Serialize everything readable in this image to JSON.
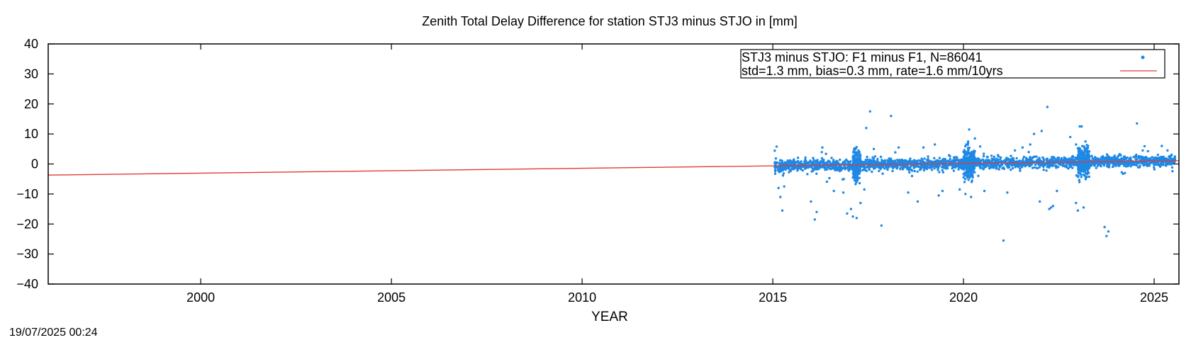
{
  "timestamp": "19/07/2025 00:24",
  "chart_data": {
    "type": "scatter",
    "title": "Zenith Total Delay Difference for station STJ3 minus STJO in [mm]",
    "xlabel": "YEAR",
    "ylabel": "",
    "xlim": [
      1996.0,
      2025.65
    ],
    "ylim": [
      -40,
      40
    ],
    "xticks": [
      2000,
      2005,
      2010,
      2015,
      2020,
      2025
    ],
    "yticks": [
      40,
      30,
      20,
      10,
      0,
      -10,
      -20,
      -30,
      -40
    ],
    "xtick_labels": [
      "2000",
      "2005",
      "2010",
      "2015",
      "2020",
      "2025"
    ],
    "ytick_labels": [
      "40",
      "30",
      "20",
      "10",
      "0",
      "−10",
      "−20",
      "−30",
      "−40"
    ],
    "grid": false,
    "legend_position": "top-right",
    "series": [
      {
        "name": "STJ3 minus STJO: F1 minus F1, N=86041",
        "kind": "points",
        "color": "#1e88e5",
        "x_range": [
          2015.05,
          2025.55
        ],
        "core_band": [
          -2.5,
          2.5
        ],
        "outliers": [
          [
            2015.1,
            5.8
          ],
          [
            2015.15,
            -8.0
          ],
          [
            2015.2,
            -11.0
          ],
          [
            2015.25,
            -15.5
          ],
          [
            2015.3,
            -7.5
          ],
          [
            2016.0,
            -12.5
          ],
          [
            2016.1,
            -18.5
          ],
          [
            2016.15,
            -16.0
          ],
          [
            2016.3,
            5.5
          ],
          [
            2016.6,
            -9.0
          ],
          [
            2016.85,
            -9.5
          ],
          [
            2016.95,
            -16.5
          ],
          [
            2017.05,
            -15.0
          ],
          [
            2017.1,
            -17.5
          ],
          [
            2017.2,
            -18.0
          ],
          [
            2017.3,
            -13.0
          ],
          [
            2017.4,
            -8.5
          ],
          [
            2017.45,
            12.0
          ],
          [
            2017.55,
            17.5
          ],
          [
            2017.65,
            5.0
          ],
          [
            2017.85,
            -20.5
          ],
          [
            2018.1,
            16.0
          ],
          [
            2018.3,
            5.5
          ],
          [
            2018.55,
            -9.5
          ],
          [
            2018.8,
            -12.5
          ],
          [
            2018.95,
            5.5
          ],
          [
            2019.25,
            6.5
          ],
          [
            2019.35,
            -10.5
          ],
          [
            2019.45,
            -9.0
          ],
          [
            2019.9,
            -8.5
          ],
          [
            2020.05,
            -10.0
          ],
          [
            2020.15,
            11.5
          ],
          [
            2020.2,
            -11.0
          ],
          [
            2020.3,
            8.5
          ],
          [
            2020.55,
            -9.0
          ],
          [
            2021.05,
            -25.5
          ],
          [
            2021.15,
            -9.5
          ],
          [
            2021.35,
            4.5
          ],
          [
            2021.55,
            5.5
          ],
          [
            2021.75,
            6.5
          ],
          [
            2021.85,
            10.0
          ],
          [
            2022.0,
            -12.5
          ],
          [
            2022.05,
            11.0
          ],
          [
            2022.2,
            19.0
          ],
          [
            2022.25,
            -15.0
          ],
          [
            2022.35,
            -14.0
          ],
          [
            2022.3,
            -14.5
          ],
          [
            2022.45,
            -9.0
          ],
          [
            2022.8,
            9.0
          ],
          [
            2022.95,
            -13.0
          ],
          [
            2023.0,
            -15.5
          ],
          [
            2023.05,
            12.5
          ],
          [
            2023.1,
            12.5
          ],
          [
            2023.15,
            -14.5
          ],
          [
            2023.2,
            7.5
          ],
          [
            2023.7,
            -21.0
          ],
          [
            2023.75,
            -24.0
          ],
          [
            2023.8,
            -22.5
          ],
          [
            2024.55,
            13.5
          ],
          [
            2024.7,
            4.5
          ],
          [
            2025.2,
            6.0
          ],
          [
            2025.35,
            4.5
          ]
        ]
      },
      {
        "name": "std=1.3 mm, bias=0.3 mm, rate=1.6 mm/10yrs",
        "kind": "line",
        "color": "#e53935",
        "x": [
          1996.0,
          2025.65
        ],
        "y": [
          -3.7,
          1.1
        ]
      }
    ]
  }
}
